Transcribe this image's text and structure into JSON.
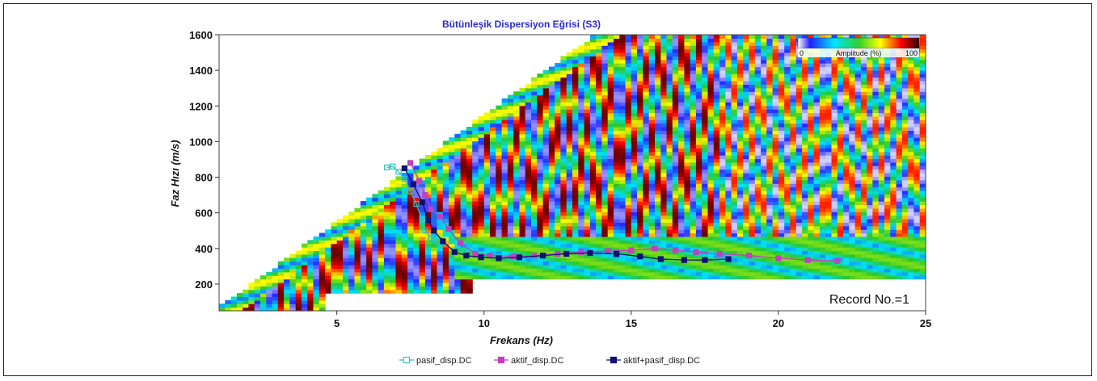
{
  "chart_data": {
    "type": "heatmap",
    "title": "Bütünleşik Dispersiyon Eğrisi (S3)",
    "xlabel": "Frekans (Hz)",
    "ylabel": "Faz Hızı (m/s)",
    "xlim": [
      1,
      25
    ],
    "ylim": [
      50,
      1600
    ],
    "xticks": [
      "5",
      "10",
      "15",
      "20",
      "25"
    ],
    "yticks": [
      "200",
      "400",
      "600",
      "800",
      "1000",
      "1200",
      "1400",
      "1600"
    ],
    "annotation": "Record No.=1",
    "colorbar": {
      "min_label": "0",
      "label": "Amplitude (%)",
      "max_label": "100",
      "placement": "top-right"
    },
    "legend_placement": "bottom-center",
    "series": [
      {
        "name": "pasif_disp.DC",
        "color": "#2ec4c4",
        "marker": "square-open",
        "x": [
          6.7,
          6.9,
          7.1,
          7.3,
          7.5,
          7.7,
          7.9,
          8.0,
          8.2,
          8.4,
          8.6,
          9.0,
          9.5
        ],
        "y": [
          855,
          860,
          830,
          790,
          720,
          650,
          560,
          500,
          460,
          440,
          430,
          390,
          370
        ]
      },
      {
        "name": "aktif_disp.DC",
        "color": "#c040c0",
        "marker": "square-filled",
        "x": [
          7.5,
          7.8,
          8.0,
          8.2,
          8.5,
          8.8,
          9.2,
          9.7,
          10.2,
          11.0,
          11.7,
          12.5,
          13.3,
          14.2,
          15.0,
          15.8,
          16.5,
          17.2,
          18.0,
          19.0,
          20.0,
          21.0,
          22.0
        ],
        "y": [
          880,
          780,
          700,
          620,
          580,
          510,
          430,
          370,
          360,
          355,
          360,
          370,
          380,
          385,
          390,
          400,
          390,
          380,
          370,
          360,
          345,
          335,
          330
        ]
      },
      {
        "name": "aktif+pasif_disp.DC",
        "color": "#101070",
        "marker": "square-filled",
        "x": [
          7.3,
          7.6,
          7.9,
          8.1,
          8.3,
          8.6,
          9.0,
          9.4,
          9.9,
          10.5,
          11.2,
          12.0,
          12.8,
          13.6,
          14.5,
          15.3,
          16.0,
          16.8,
          17.5,
          18.3
        ],
        "y": [
          850,
          760,
          660,
          560,
          500,
          440,
          380,
          360,
          350,
          345,
          350,
          360,
          370,
          375,
          370,
          355,
          340,
          335,
          335,
          340
        ]
      }
    ]
  }
}
